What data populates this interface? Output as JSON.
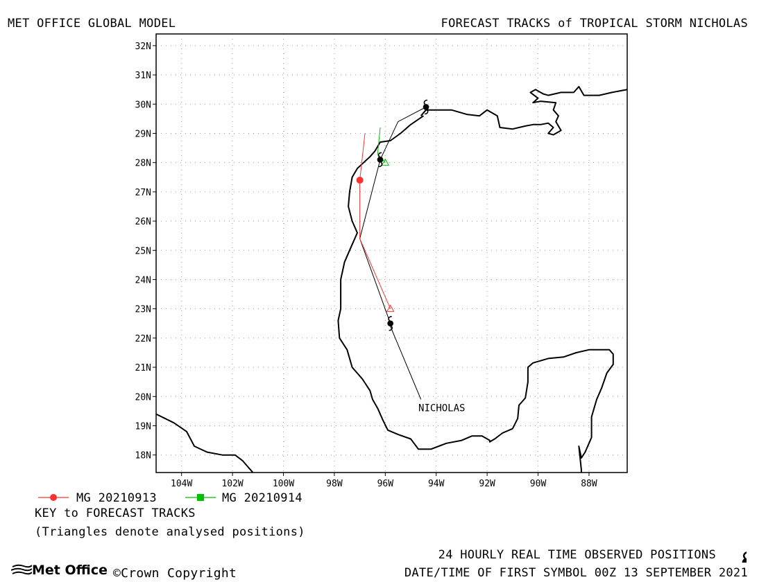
{
  "header": {
    "left_title": "MET OFFICE GLOBAL MODEL",
    "right_title": "FORECAST TRACKS of TROPICAL STORM NICHOLAS"
  },
  "map": {
    "lon_range": [
      -105,
      -86.5
    ],
    "lat_range": [
      17.4,
      32.4
    ],
    "lon_ticks": [
      {
        "v": -104,
        "label": "104W"
      },
      {
        "v": -102,
        "label": "102W"
      },
      {
        "v": -100,
        "label": "100W"
      },
      {
        "v": -98,
        "label": "98W"
      },
      {
        "v": -96,
        "label": "96W"
      },
      {
        "v": -94,
        "label": "94W"
      },
      {
        "v": -92,
        "label": "92W"
      },
      {
        "v": -90,
        "label": "90W"
      },
      {
        "v": -88,
        "label": "88W"
      }
    ],
    "lat_ticks": [
      {
        "v": 18,
        "label": "18N"
      },
      {
        "v": 19,
        "label": "19N"
      },
      {
        "v": 20,
        "label": "20N"
      },
      {
        "v": 21,
        "label": "21N"
      },
      {
        "v": 22,
        "label": "22N"
      },
      {
        "v": 23,
        "label": "23N"
      },
      {
        "v": 24,
        "label": "24N"
      },
      {
        "v": 25,
        "label": "25N"
      },
      {
        "v": 26,
        "label": "26N"
      },
      {
        "v": 27,
        "label": "27N"
      },
      {
        "v": 28,
        "label": "28N"
      },
      {
        "v": 29,
        "label": "29N"
      },
      {
        "v": 30,
        "label": "30N"
      },
      {
        "v": 31,
        "label": "31N"
      },
      {
        "v": 32,
        "label": "32N"
      }
    ],
    "grid": true,
    "storm_label": "NICHOLAS",
    "storm_label_pos": [
      -94.7,
      19.5
    ],
    "label_leader": [
      [
        -95.8,
        22.4
      ],
      [
        -94.6,
        19.9
      ]
    ],
    "observed_positions": [
      [
        -95.8,
        22.5
      ],
      [
        -96.2,
        28.1
      ],
      [
        -94.4,
        29.9
      ]
    ],
    "observed_track": [
      [
        -95.8,
        22.5
      ],
      [
        -97.0,
        25.4
      ],
      [
        -96.2,
        28.1
      ],
      [
        -95.5,
        29.4
      ],
      [
        -94.4,
        29.9
      ]
    ],
    "forecast_tracks": [
      {
        "name": "MG 20210913",
        "color": "#ff3030",
        "points": [
          [
            -95.8,
            23.0
          ],
          [
            -97.0,
            25.4
          ],
          [
            -97.0,
            27.4
          ],
          [
            -96.8,
            29.0
          ]
        ],
        "start_marker": [
          -97.0,
          27.4
        ]
      },
      {
        "name": "MG 20210914",
        "color": "#00c000",
        "points": [
          [
            -96.0,
            28.0
          ],
          [
            -96.3,
            28.3
          ],
          [
            -96.2,
            29.2
          ]
        ],
        "start_marker": [
          -96.0,
          28.0
        ]
      }
    ],
    "coastlines": [
      [
        [
          -105,
          19.4
        ],
        [
          -104.3,
          19.1
        ],
        [
          -103.8,
          18.8
        ],
        [
          -103.5,
          18.3
        ],
        [
          -103.0,
          18.1
        ],
        [
          -102.4,
          18.0
        ],
        [
          -101.9,
          18.0
        ],
        [
          -101.6,
          17.8
        ],
        [
          -101.2,
          17.4
        ]
      ],
      [
        [
          -94.6,
          29.6
        ],
        [
          -94.4,
          29.8
        ],
        [
          -94.1,
          29.8
        ],
        [
          -93.4,
          29.8
        ],
        [
          -92.8,
          29.65
        ],
        [
          -92.3,
          29.6
        ],
        [
          -92.0,
          29.8
        ],
        [
          -91.6,
          29.6
        ],
        [
          -91.5,
          29.2
        ],
        [
          -91.0,
          29.15
        ],
        [
          -90.5,
          29.25
        ],
        [
          -90.2,
          29.3
        ],
        [
          -89.9,
          29.3
        ],
        [
          -89.6,
          29.35
        ],
        [
          -89.4,
          29.2
        ],
        [
          -89.6,
          29.0
        ],
        [
          -89.4,
          28.95
        ],
        [
          -89.1,
          29.1
        ],
        [
          -89.3,
          29.4
        ],
        [
          -89.2,
          29.6
        ],
        [
          -89.4,
          29.8
        ],
        [
          -89.3,
          30.05
        ],
        [
          -89.9,
          30.1
        ],
        [
          -90.2,
          30.05
        ],
        [
          -90.0,
          30.2
        ],
        [
          -90.3,
          30.4
        ],
        [
          -90.1,
          30.5
        ],
        [
          -89.8,
          30.35
        ],
        [
          -89.6,
          30.3
        ],
        [
          -89.1,
          30.4
        ],
        [
          -88.6,
          30.4
        ],
        [
          -88.4,
          30.6
        ],
        [
          -88.2,
          30.3
        ],
        [
          -87.6,
          30.3
        ],
        [
          -87.1,
          30.4
        ],
        [
          -86.5,
          30.5
        ]
      ],
      [
        [
          -94.5,
          29.6
        ],
        [
          -95.0,
          29.3
        ],
        [
          -95.4,
          29.0
        ],
        [
          -95.8,
          28.75
        ],
        [
          -96.2,
          28.7
        ],
        [
          -96.4,
          28.4
        ],
        [
          -96.6,
          28.2
        ],
        [
          -96.85,
          28.0
        ],
        [
          -97.1,
          27.8
        ],
        [
          -97.3,
          27.5
        ],
        [
          -97.4,
          27.0
        ],
        [
          -97.45,
          26.5
        ],
        [
          -97.3,
          26.0
        ],
        [
          -97.1,
          25.6
        ],
        [
          -97.4,
          25.0
        ],
        [
          -97.6,
          24.6
        ],
        [
          -97.75,
          24.0
        ],
        [
          -97.75,
          23.0
        ],
        [
          -97.85,
          22.6
        ],
        [
          -97.8,
          22.0
        ],
        [
          -97.5,
          21.6
        ],
        [
          -97.3,
          21.0
        ],
        [
          -96.9,
          20.6
        ],
        [
          -96.6,
          20.2
        ],
        [
          -96.5,
          19.9
        ],
        [
          -96.3,
          19.6
        ],
        [
          -96.1,
          19.2
        ],
        [
          -95.9,
          18.85
        ],
        [
          -95.5,
          18.7
        ],
        [
          -95.0,
          18.55
        ],
        [
          -94.7,
          18.2
        ],
        [
          -94.2,
          18.2
        ],
        [
          -93.6,
          18.4
        ],
        [
          -93.0,
          18.5
        ],
        [
          -92.6,
          18.65
        ],
        [
          -92.2,
          18.65
        ],
        [
          -91.9,
          18.5
        ],
        [
          -91.9,
          18.45
        ],
        [
          -91.7,
          18.55
        ],
        [
          -91.4,
          18.75
        ],
        [
          -91.0,
          18.9
        ],
        [
          -90.8,
          19.25
        ],
        [
          -90.75,
          19.7
        ],
        [
          -90.5,
          19.95
        ],
        [
          -90.4,
          20.5
        ],
        [
          -90.4,
          21.0
        ],
        [
          -90.2,
          21.15
        ],
        [
          -89.6,
          21.3
        ],
        [
          -89.0,
          21.35
        ],
        [
          -88.5,
          21.5
        ],
        [
          -88.0,
          21.6
        ],
        [
          -87.2,
          21.6
        ],
        [
          -87.05,
          21.45
        ],
        [
          -87.05,
          21.1
        ],
        [
          -87.3,
          20.8
        ],
        [
          -87.5,
          20.3
        ],
        [
          -87.7,
          19.9
        ],
        [
          -87.9,
          19.3
        ],
        [
          -87.9,
          18.6
        ],
        [
          -88.15,
          18.1
        ],
        [
          -88.3,
          17.9
        ],
        [
          -88.4,
          18.3
        ],
        [
          -88.3,
          17.5
        ],
        [
          -88.3,
          17.4
        ]
      ]
    ]
  },
  "legend": {
    "items": [
      {
        "label": "MG 20210913",
        "color": "#ff3030",
        "marker": "circle"
      },
      {
        "label": "MG 20210914",
        "color": "#00c000",
        "marker": "square"
      }
    ],
    "key_title": "KEY to FORECAST TRACKS",
    "key_note": "(Triangles denote analysed positions)"
  },
  "footer": {
    "observed_note": "24 HOURLY REAL TIME OBSERVED POSITIONS",
    "datetime_note": "DATE/TIME OF FIRST SYMBOL 00Z 13 SEPTEMBER 2021",
    "copyright": "©Crown Copyright",
    "logo_text": "Met Office"
  }
}
